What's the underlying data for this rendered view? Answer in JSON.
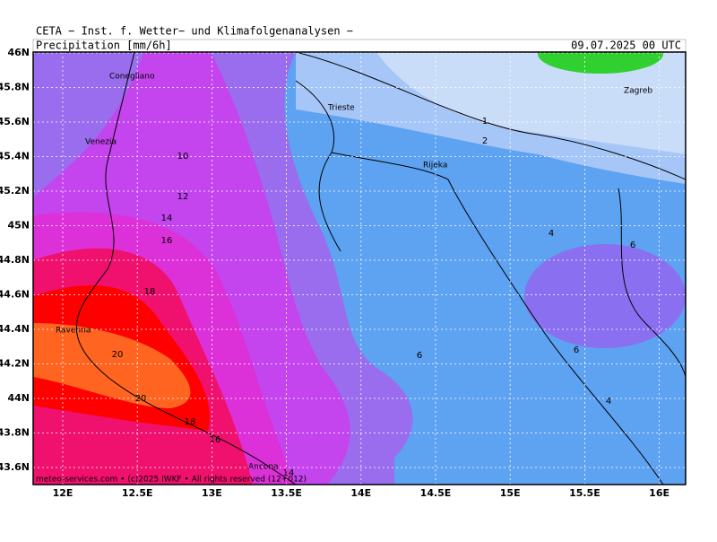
{
  "header": {
    "title": "CETA − Inst. f. Wetter− und Klimafolgenanalysen −",
    "field": "Precipitation [mm/6h]",
    "valid": "09.07.2025 00 UTC"
  },
  "axes": {
    "lat": [
      "46N",
      "45.8N",
      "45.6N",
      "45.4N",
      "45.2N",
      "45N",
      "44.8N",
      "44.6N",
      "44.4N",
      "44.2N",
      "44N",
      "43.8N",
      "43.6N"
    ],
    "lon": [
      "12E",
      "12.5E",
      "13E",
      "13.5E",
      "14E",
      "14.5E",
      "15E",
      "15.5E",
      "16E"
    ]
  },
  "cities": [
    "Conegliano",
    "Venezia",
    "Trieste",
    "Rijeka",
    "Zagreb",
    "Ravenna",
    "Ancona"
  ],
  "contour_labels": [
    1,
    2,
    10,
    12,
    14,
    16,
    18,
    20,
    20,
    18,
    16,
    14,
    4,
    6,
    6,
    6,
    4
  ],
  "footer": "meteo-services.com • (c)2025 IWKF • All rights reserved (12+012)"
}
